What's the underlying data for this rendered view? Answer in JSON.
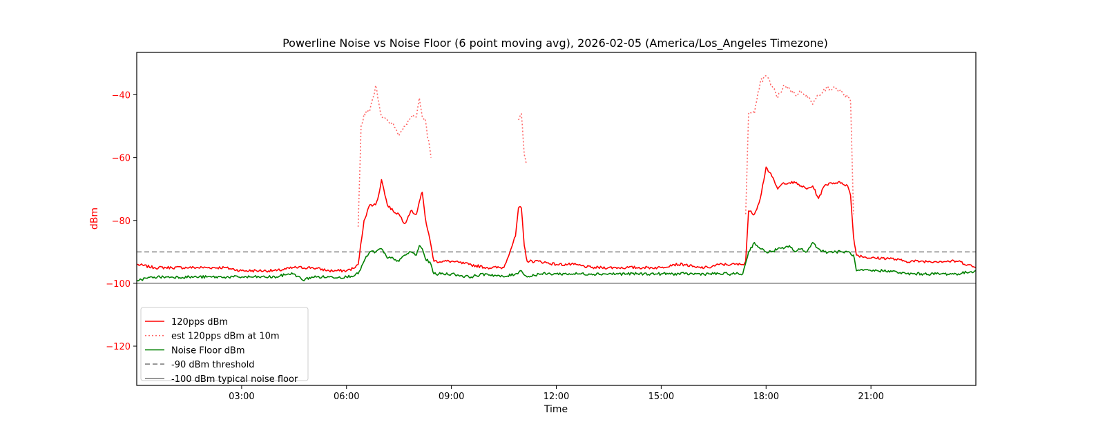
{
  "chart_data": {
    "type": "line",
    "title": "Powerline Noise vs Noise Floor (6 point moving avg), 2026-02-05 (America/Los_Angeles Timezone)",
    "xlabel": "Time",
    "ylabel": "dBm",
    "xlim": [
      "00:00",
      "24:00"
    ],
    "ylim": [
      -132.5,
      -26.5
    ],
    "x_ticks": [
      "03:00",
      "06:00",
      "09:00",
      "12:00",
      "15:00",
      "18:00",
      "21:00"
    ],
    "y_ticks": [
      -40,
      -60,
      -80,
      -100,
      -120
    ],
    "grid": false,
    "legend_position": "lower-left",
    "colors": {
      "ylabel_and_ticks": "#ff0000",
      "axes": "#000000"
    },
    "series": [
      {
        "name": "120pps dBm",
        "color": "#ff0000",
        "style": "solid",
        "x": [
          "00:00",
          "00:30",
          "01:00",
          "01:30",
          "02:00",
          "02:30",
          "03:00",
          "03:30",
          "04:00",
          "04:30",
          "05:00",
          "05:30",
          "06:00",
          "06:15",
          "06:20",
          "06:30",
          "06:40",
          "06:50",
          "06:55",
          "07:00",
          "07:10",
          "07:20",
          "07:30",
          "07:40",
          "07:50",
          "08:00",
          "08:05",
          "08:10",
          "08:15",
          "08:25",
          "08:30",
          "09:00",
          "09:30",
          "10:00",
          "10:30",
          "10:50",
          "10:55",
          "11:00",
          "11:05",
          "11:10",
          "11:30",
          "12:00",
          "12:30",
          "13:00",
          "13:30",
          "14:00",
          "14:30",
          "15:00",
          "15:20",
          "15:40",
          "16:00",
          "16:20",
          "16:40",
          "17:00",
          "17:20",
          "17:25",
          "17:30",
          "17:40",
          "17:50",
          "18:00",
          "18:10",
          "18:20",
          "18:30",
          "18:40",
          "18:50",
          "19:00",
          "19:10",
          "19:20",
          "19:30",
          "19:40",
          "19:50",
          "20:00",
          "20:10",
          "20:20",
          "20:25",
          "20:30",
          "20:35",
          "21:00",
          "21:30",
          "22:00",
          "22:30",
          "23:00",
          "23:30",
          "24:00"
        ],
        "y": [
          -94,
          -95,
          -95,
          -95,
          -95,
          -95,
          -96,
          -96,
          -96,
          -95,
          -95,
          -96,
          -96,
          -95,
          -94,
          -80,
          -75,
          -75,
          -72,
          -67,
          -75,
          -77,
          -78,
          -81,
          -77,
          -78,
          -74,
          -71,
          -79,
          -88,
          -93,
          -93,
          -94,
          -95,
          -95,
          -85,
          -76,
          -76,
          -88,
          -93,
          -93,
          -94,
          -94,
          -95,
          -95,
          -95,
          -95,
          -95,
          -94,
          -94,
          -95,
          -95,
          -94,
          -94,
          -94,
          -93,
          -77,
          -78,
          -73,
          -63,
          -66,
          -70,
          -68,
          -68,
          -68,
          -69,
          -70,
          -69,
          -73,
          -69,
          -68,
          -68,
          -68,
          -69,
          -72,
          -85,
          -91,
          -92,
          -92,
          -93,
          -93,
          -93,
          -93,
          -95
        ]
      },
      {
        "name": "est 120pps dBm at 10m",
        "color": "#ff6666",
        "style": "dotted",
        "x": [
          "00:00",
          "06:15",
          "06:20",
          "06:25",
          "06:30",
          "06:40",
          "06:50",
          "07:00",
          "07:10",
          "07:20",
          "07:30",
          "07:40",
          "07:50",
          "08:00",
          "08:05",
          "08:10",
          "08:15",
          "08:25",
          "08:30",
          "10:50",
          "10:55",
          "11:00",
          "11:05",
          "11:10",
          "11:20",
          "17:20",
          "17:25",
          "17:30",
          "17:40",
          "17:50",
          "18:00",
          "18:10",
          "18:20",
          "18:30",
          "18:40",
          "18:50",
          "19:00",
          "19:10",
          "19:20",
          "19:30",
          "19:40",
          "19:50",
          "20:00",
          "20:10",
          "20:20",
          "20:25",
          "20:30",
          "20:35",
          "24:00"
        ],
        "y": [
          null,
          null,
          -82,
          -50,
          -46,
          -45,
          -37,
          -47,
          -48,
          -49,
          -53,
          -50,
          -47,
          -47,
          -41,
          -47,
          -48,
          -60,
          null,
          null,
          -48,
          -46,
          -59,
          -62,
          null,
          null,
          -78,
          -46,
          -46,
          -36,
          -34,
          -37,
          -41,
          -37,
          -38,
          -40,
          -39,
          -40,
          -43,
          -40,
          -38,
          -38,
          -38,
          -39,
          -41,
          -42,
          -78,
          null,
          null
        ]
      },
      {
        "name": "Noise Floor dBm",
        "color": "#008000",
        "style": "solid",
        "x": [
          "00:00",
          "00:30",
          "01:00",
          "01:30",
          "02:00",
          "02:30",
          "03:00",
          "03:30",
          "04:00",
          "04:20",
          "04:30",
          "04:45",
          "05:00",
          "05:30",
          "06:00",
          "06:20",
          "06:30",
          "06:40",
          "06:50",
          "07:00",
          "07:10",
          "07:20",
          "07:30",
          "07:40",
          "07:50",
          "08:00",
          "08:05",
          "08:10",
          "08:15",
          "08:25",
          "08:30",
          "09:00",
          "09:30",
          "10:00",
          "10:30",
          "10:50",
          "11:00",
          "11:10",
          "11:30",
          "12:00",
          "12:30",
          "13:00",
          "13:30",
          "14:00",
          "14:30",
          "15:00",
          "15:20",
          "15:40",
          "16:00",
          "16:30",
          "17:00",
          "17:20",
          "17:30",
          "17:40",
          "17:50",
          "18:00",
          "18:10",
          "18:20",
          "18:30",
          "18:40",
          "18:50",
          "19:00",
          "19:10",
          "19:20",
          "19:30",
          "19:40",
          "19:50",
          "20:00",
          "20:10",
          "20:20",
          "20:30",
          "20:35",
          "21:00",
          "21:30",
          "22:00",
          "22:30",
          "23:00",
          "23:30",
          "24:00"
        ],
        "y": [
          -99,
          -98,
          -98,
          -98,
          -98,
          -98,
          -98,
          -98,
          -98,
          -97,
          -97,
          -99,
          -98,
          -98,
          -98,
          -97,
          -93,
          -90,
          -90,
          -89,
          -92,
          -92,
          -93,
          -91,
          -90,
          -91,
          -88,
          -89,
          -92,
          -94,
          -97,
          -97,
          -98,
          -97,
          -98,
          -97,
          -96,
          -98,
          -97,
          -97,
          -97,
          -97,
          -97,
          -97,
          -97,
          -97,
          -97,
          -97,
          -97,
          -97,
          -97,
          -97,
          -90,
          -87,
          -89,
          -90,
          -90,
          -89,
          -89,
          -88,
          -90,
          -89,
          -90,
          -87,
          -89,
          -90,
          -90,
          -90,
          -90,
          -90,
          -91,
          -96,
          -96,
          -96,
          -97,
          -97,
          -97,
          -97,
          -96
        ]
      },
      {
        "name": "-90 dBm threshold",
        "color": "#808080",
        "style": "dashed",
        "constant": -90
      },
      {
        "name": "-100 dBm typical noise floor",
        "color": "#808080",
        "style": "solid",
        "constant": -100
      }
    ]
  }
}
